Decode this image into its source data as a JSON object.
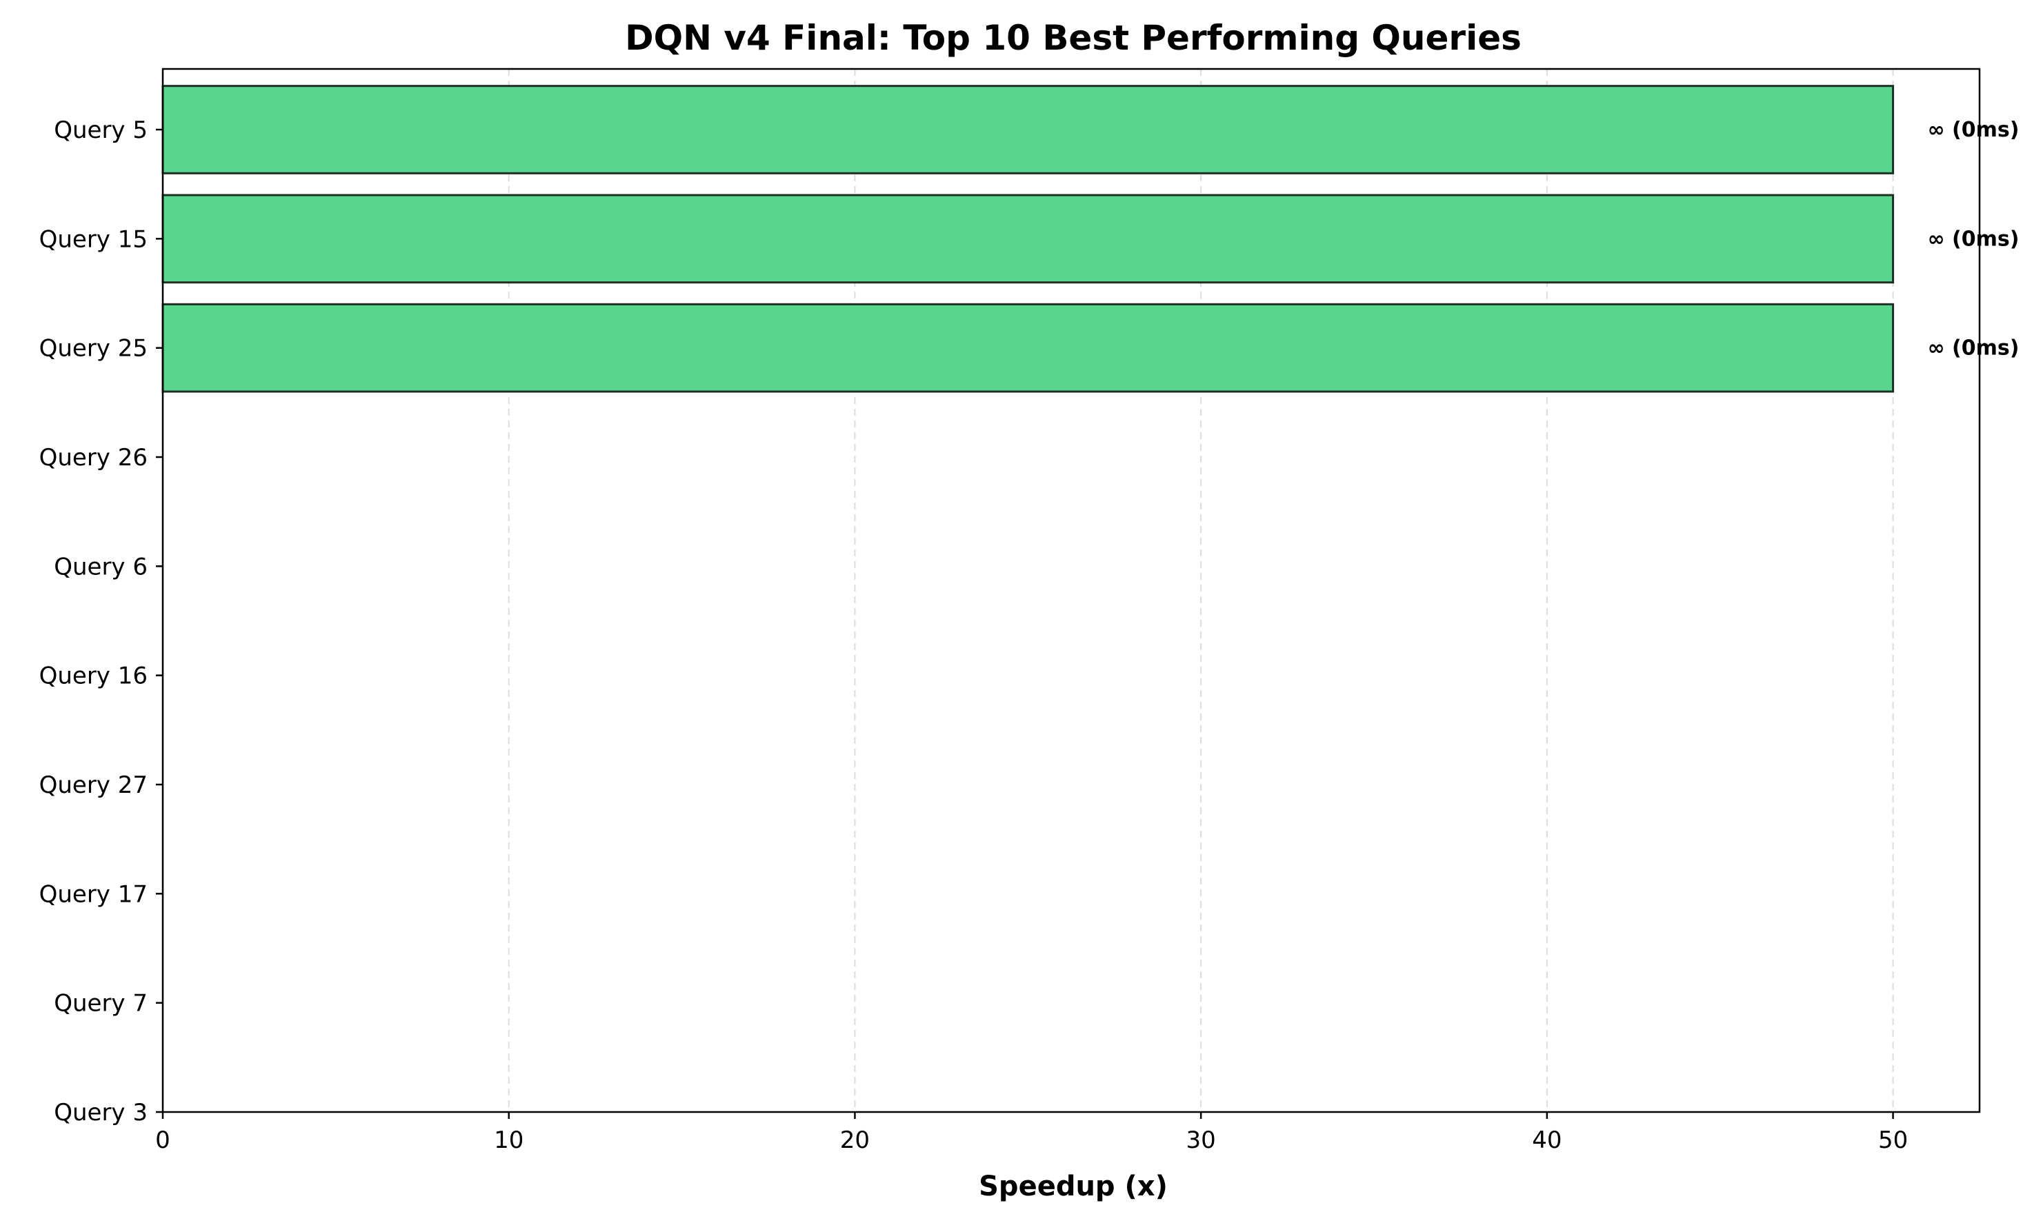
{
  "chart_data": {
    "type": "bar",
    "orientation": "horizontal",
    "title": "DQN v4 Final: Top 10 Best Performing Queries",
    "xlabel": "Speedup (x)",
    "ylabel": "",
    "categories": [
      "Query 5",
      "Query 15",
      "Query 25",
      "Query 26",
      "Query 6",
      "Query 16",
      "Query 27",
      "Query 17",
      "Query 7",
      "Query 3"
    ],
    "values": [
      50,
      50,
      50,
      0,
      0,
      0,
      0,
      0,
      0,
      0
    ],
    "data_labels": [
      "∞ (0ms)",
      "∞ (0ms)",
      "∞ (0ms)",
      "",
      "",
      "",
      "",
      "",
      "",
      ""
    ],
    "xlim": [
      0,
      52.5
    ],
    "xticks": [
      0,
      10,
      20,
      30,
      40,
      50
    ],
    "grid": "x-dashed",
    "bar_color": "#58d68d",
    "bar_edge_color": "#1f2f25"
  }
}
